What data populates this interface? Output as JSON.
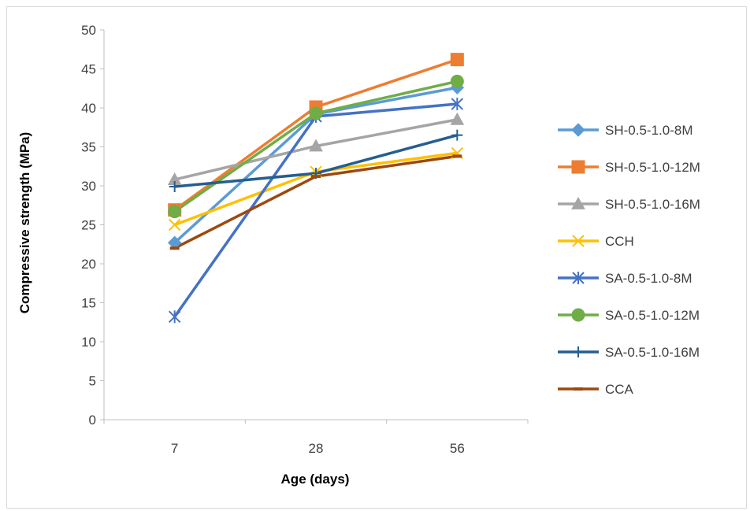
{
  "chart_data": {
    "type": "line",
    "title": "",
    "xlabel": "Age (days)",
    "ylabel": "Compressive strength (MPa)",
    "categories": [
      "7",
      "28",
      "56"
    ],
    "ylim": [
      0,
      50
    ],
    "yticks": [
      0,
      5,
      10,
      15,
      20,
      25,
      30,
      35,
      40,
      45,
      50
    ],
    "grid": false,
    "legend_position": "right",
    "series": [
      {
        "name": "SH-0.5-1.0-8M",
        "values": [
          22.7,
          39.2,
          42.6
        ],
        "color": "#5b9bd5",
        "marker": "diamond"
      },
      {
        "name": "SH-0.5-1.0-12M",
        "values": [
          26.9,
          40.1,
          46.2
        ],
        "color": "#ed7d31",
        "marker": "square"
      },
      {
        "name": "SH-0.5-1.0-16M",
        "values": [
          30.8,
          35.1,
          38.5
        ],
        "color": "#a5a5a5",
        "marker": "triangle"
      },
      {
        "name": "CCH",
        "values": [
          25.0,
          31.8,
          34.2
        ],
        "color": "#ffc000",
        "marker": "x"
      },
      {
        "name": "SA-0.5-1.0-8M",
        "values": [
          13.2,
          38.9,
          40.5
        ],
        "color": "#4472c4",
        "marker": "asterisk"
      },
      {
        "name": "SA-0.5-1.0-12M",
        "values": [
          26.7,
          39.3,
          43.4
        ],
        "color": "#70ad47",
        "marker": "circle"
      },
      {
        "name": "SA-0.5-1.0-16M",
        "values": [
          29.9,
          31.6,
          36.5
        ],
        "color": "#255e91",
        "marker": "plus"
      },
      {
        "name": "CCA",
        "values": [
          22.0,
          31.2,
          33.8
        ],
        "color": "#9e480e",
        "marker": "dash"
      }
    ]
  }
}
